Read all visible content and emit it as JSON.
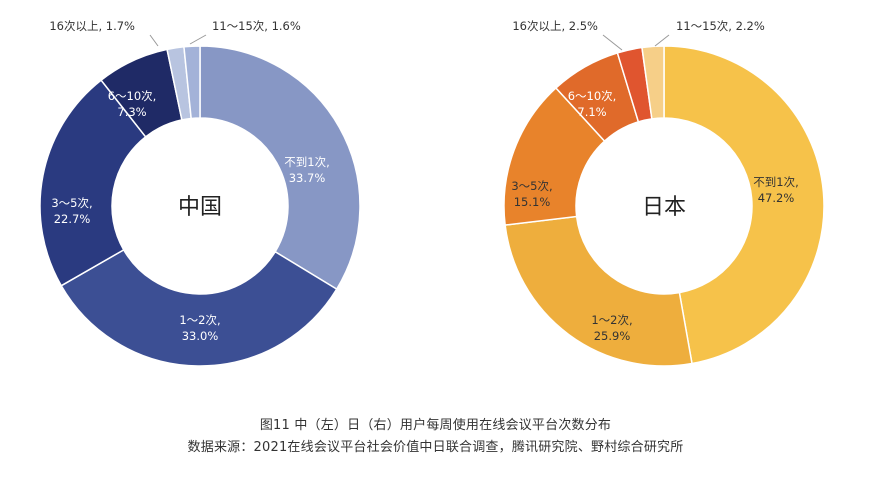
{
  "caption": {
    "line1": "图11 中（左）日（右）用户每周使用在线会议平台次数分布",
    "line2": "数据来源：2021在线会议平台社会价值中日联合调查，腾讯研究院、野村综合研究所"
  },
  "chart_data": [
    {
      "type": "pie",
      "donut": true,
      "center_label": "中国",
      "unit": "%",
      "slices": [
        {
          "label": "不到1次",
          "value": 33.7,
          "color": "#8797c5",
          "text": "不到1次,\n33.7%"
        },
        {
          "label": "1～2次",
          "value": 33.0,
          "color": "#3c4f94",
          "text": "1～2次,\n33.0%"
        },
        {
          "label": "3～5次",
          "value": 22.7,
          "color": "#2a3a80",
          "text": "3～5次,\n22.7%"
        },
        {
          "label": "6～10次",
          "value": 7.3,
          "color": "#1f2a66",
          "text": "6～10次,\n7.3%"
        },
        {
          "label": "16次以上",
          "value": 1.7,
          "color": "#b8c4e0",
          "text": "16次以上, 1.7%"
        },
        {
          "label": "11～15次",
          "value": 1.6,
          "color": "#a3b2d8",
          "text": "11～15次, 1.6%"
        }
      ]
    },
    {
      "type": "pie",
      "donut": true,
      "center_label": "日本",
      "unit": "%",
      "slices": [
        {
          "label": "不到1次",
          "value": 47.2,
          "color": "#f6c24a",
          "text": "不到1次,\n47.2%"
        },
        {
          "label": "1～2次",
          "value": 25.9,
          "color": "#eeae3d",
          "text": "1～2次,\n25.9%"
        },
        {
          "label": "3～5次",
          "value": 15.1,
          "color": "#e8832b",
          "text": "3～5次,\n15.1%"
        },
        {
          "label": "6～10次",
          "value": 7.1,
          "color": "#e06a2a",
          "text": "6～10次,\n7.1%"
        },
        {
          "label": "16次以上",
          "value": 2.5,
          "color": "#e0552f",
          "text": "16次以上, 2.5%"
        },
        {
          "label": "11～15次",
          "value": 2.2,
          "color": "#f6cf88",
          "text": "11～15次, 2.2%"
        }
      ]
    }
  ]
}
